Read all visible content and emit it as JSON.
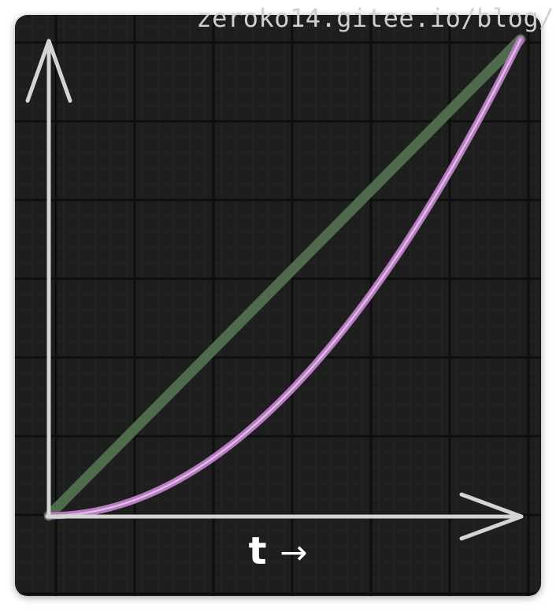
{
  "watermark": "zeroko14.gitee.io/blog/",
  "colors": {
    "background": "#1e1e1e",
    "grid_major": "#0e0e0e",
    "grid_minor": "#262626",
    "axis": "#d4d4d4",
    "linear": "#4e6b4c",
    "quadratic": "#b77bc1",
    "quadratic_core": "#e9c7ee"
  },
  "chart_data": {
    "type": "line",
    "title": "",
    "xlabel": "t",
    "xlabel_arrow": "→",
    "ylabel": "",
    "xlim": [
      0,
      1
    ],
    "ylim": [
      0,
      1
    ],
    "grid": true,
    "legend": "none",
    "series": [
      {
        "x": [
          0,
          0.25,
          0.5,
          0.75,
          1
        ],
        "y": [
          0,
          0.25,
          0.5,
          0.75,
          1
        ],
        "color": "linear"
      },
      {
        "x": [
          0,
          0.1,
          0.2,
          0.3,
          0.4,
          0.5,
          0.6,
          0.7,
          0.8,
          0.9,
          1
        ],
        "y": [
          0,
          0.01,
          0.04,
          0.09,
          0.16,
          0.25,
          0.36,
          0.49,
          0.64,
          0.81,
          1
        ],
        "color": "quadratic"
      }
    ]
  }
}
